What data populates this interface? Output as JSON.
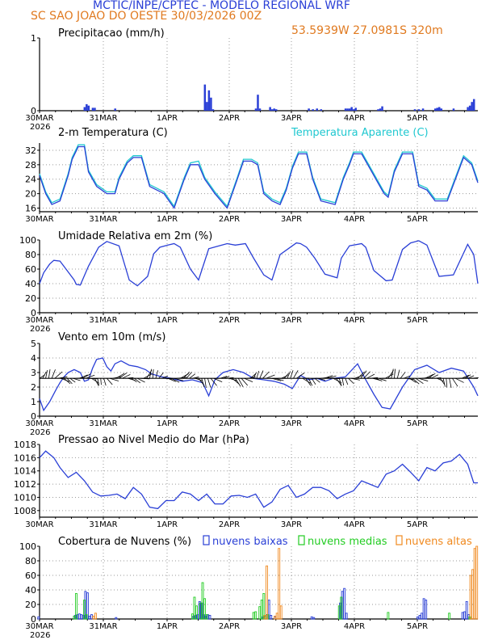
{
  "header": {
    "line1": "MCTIC/INPE/CPTEC - MODELO REGIONAL WRF",
    "line2": "SC SAO JOAO DO OESTE   30/03/2026 00Z",
    "coords": "53.5939W 27.0981S 320m"
  },
  "colors": {
    "blue": "#2a3fd6",
    "cyan": "#20c8d0",
    "orange": "#f08a20",
    "green": "#22cc22",
    "title_orange": "#e07a20",
    "grid": "#9a9a9a"
  },
  "chart_data": [
    {
      "type": "bar",
      "title": "Precipitacao (mm/h)",
      "ylim": [
        0,
        1
      ],
      "yticks": [
        "0",
        "1"
      ],
      "xticks": [
        "30MAR",
        "31MAR",
        "1APR",
        "2APR",
        "3APR",
        "4APR",
        "5APR"
      ],
      "year": "2026",
      "x": [
        22,
        23,
        24,
        26,
        27,
        37,
        81,
        82,
        83,
        84,
        85,
        106,
        107,
        108,
        113,
        114,
        115,
        116,
        132,
        134,
        136,
        138,
        150,
        151,
        152,
        153,
        154,
        155,
        166,
        167,
        168,
        184,
        186,
        188,
        194,
        195,
        196,
        197,
        203,
        210,
        211,
        212,
        213
      ],
      "values": [
        0.05,
        0.09,
        0.07,
        0.04,
        0.04,
        0.03,
        0.36,
        0.12,
        0.28,
        0.18,
        0.02,
        0.03,
        0.22,
        0.03,
        0.05,
        0.02,
        0.03,
        0.02,
        0.03,
        0.02,
        0.03,
        0.02,
        0.03,
        0.03,
        0.03,
        0.05,
        0.02,
        0.04,
        0.02,
        0.03,
        0.06,
        0.02,
        0.02,
        0.03,
        0.03,
        0.04,
        0.05,
        0.03,
        0.03,
        0.05,
        0.07,
        0.12,
        0.16
      ]
    },
    {
      "type": "line",
      "title": "2-m Temperatura (C)",
      "legend": "Temperatura Aparente (C)",
      "ylim": [
        15,
        34
      ],
      "yticks": [
        "16",
        "20",
        "24",
        "28",
        "32"
      ],
      "xticks": [
        "30MAR",
        "31MAR",
        "1APR",
        "2APR",
        "3APR",
        "4APR",
        "5APR"
      ],
      "year": "2026",
      "series": [
        {
          "name": "Temperatura 2m",
          "color": "#2a3fd6",
          "x": [
            0,
            3,
            6,
            10,
            14,
            16,
            19,
            20,
            22,
            24,
            28,
            33,
            37,
            39,
            43,
            46,
            50,
            54,
            61,
            66,
            71,
            74,
            78,
            81,
            86,
            92,
            97,
            100,
            104,
            107,
            110,
            114,
            118,
            121,
            124,
            127,
            131,
            134,
            138,
            145,
            149,
            152,
            154,
            158,
            163,
            166,
            169,
            171,
            174,
            178,
            183,
            186,
            190,
            194,
            200,
            206,
            208,
            212,
            215
          ],
          "values": [
            25,
            20,
            17,
            18,
            25,
            29.5,
            33,
            33,
            33,
            26,
            22,
            20,
            20,
            24,
            28.5,
            30,
            30,
            22,
            20,
            16,
            24,
            28,
            28,
            24,
            20,
            16,
            24,
            29,
            29,
            28,
            20,
            18,
            17,
            21,
            27,
            31,
            31,
            24,
            18,
            17,
            24,
            28,
            31,
            31,
            26,
            23,
            20,
            19,
            26,
            31,
            31,
            22,
            21,
            18,
            18,
            27,
            30,
            28,
            23
          ]
        },
        {
          "name": "Temperatura Aparente",
          "color": "#20c8d0",
          "x": [
            0,
            3,
            6,
            10,
            14,
            16,
            19,
            20,
            22,
            24,
            28,
            33,
            37,
            39,
            43,
            46,
            50,
            54,
            61,
            66,
            71,
            74,
            78,
            81,
            86,
            92,
            97,
            100,
            104,
            107,
            110,
            114,
            118,
            121,
            124,
            127,
            131,
            134,
            138,
            145,
            149,
            152,
            154,
            158,
            163,
            166,
            169,
            171,
            174,
            178,
            183,
            186,
            190,
            194,
            200,
            206,
            208,
            212,
            215
          ],
          "values": [
            25.5,
            20.5,
            17.5,
            18.5,
            25.5,
            30,
            33.5,
            33.5,
            33.5,
            26.5,
            22.5,
            20.5,
            20.5,
            24.5,
            29,
            30.5,
            30.5,
            22.5,
            20.5,
            16.5,
            24.5,
            28.5,
            29,
            24.5,
            20.5,
            16.5,
            24.5,
            29.5,
            29.5,
            28.5,
            20.5,
            18.5,
            17.5,
            21.5,
            27.5,
            31.5,
            31.5,
            24.5,
            18.5,
            17.5,
            24.5,
            28.5,
            31.5,
            31.5,
            26.5,
            23.5,
            20.5,
            19.5,
            26.5,
            31.5,
            31.5,
            22.5,
            21.5,
            18.5,
            18.5,
            27.5,
            30.5,
            28.5,
            23.5
          ]
        }
      ]
    },
    {
      "type": "line",
      "title": "Umidade Relativa em 2m (%)",
      "ylim": [
        0,
        100
      ],
      "yticks": [
        "0",
        "20",
        "40",
        "60",
        "80",
        "100"
      ],
      "xticks": [
        "30MAR",
        "31MAR",
        "1APR",
        "2APR",
        "3APR",
        "4APR",
        "5APR"
      ],
      "year": "2026",
      "series": [
        {
          "name": "Umidade",
          "color": "#2a3fd6",
          "x": [
            0,
            2,
            5,
            7,
            10,
            13,
            17,
            18,
            20,
            24,
            29,
            33,
            39,
            44,
            48,
            53,
            56,
            59,
            63,
            66,
            69,
            74,
            78,
            83,
            88,
            92,
            96,
            101,
            105,
            110,
            114,
            118,
            122,
            126,
            128,
            131,
            135,
            140,
            146,
            148,
            152,
            158,
            160,
            164,
            170,
            173,
            178,
            182,
            186,
            190,
            196,
            203,
            210,
            213,
            215
          ],
          "values": [
            40,
            55,
            67,
            72,
            71,
            60,
            45,
            39,
            38,
            64,
            90,
            98,
            92,
            45,
            37,
            50,
            81,
            90,
            93,
            95,
            90,
            60,
            45,
            88,
            92,
            95,
            93,
            95,
            75,
            52,
            45,
            80,
            88,
            96,
            95,
            90,
            75,
            53,
            48,
            75,
            92,
            95,
            90,
            58,
            44,
            45,
            87,
            96,
            99,
            93,
            50,
            52,
            94,
            80,
            40
          ]
        }
      ]
    },
    {
      "type": "line",
      "title": "Vento em 10m (m/s)",
      "ylim": [
        0,
        5
      ],
      "yticks": [
        "0",
        "1",
        "2",
        "3",
        "4",
        "5"
      ],
      "xticks": [
        "30MAR",
        "31MAR",
        "1APR",
        "2APR",
        "3APR",
        "4APR",
        "5APR"
      ],
      "year": "2026",
      "series": [
        {
          "name": "Velocidade",
          "color": "#2a3fd6",
          "x": [
            0,
            2,
            5,
            8,
            10,
            12,
            14,
            17,
            20,
            22,
            24,
            26,
            28,
            31,
            33,
            35,
            37,
            40,
            44,
            48,
            52,
            55,
            60,
            65,
            70,
            75,
            80,
            83,
            86,
            90,
            95,
            100,
            105,
            110,
            115,
            120,
            124,
            128,
            132,
            136,
            140,
            144,
            150,
            156,
            160,
            164,
            168,
            172,
            178,
            184,
            190,
            196,
            202,
            208,
            213,
            215
          ],
          "values": [
            1.2,
            0.4,
            1.0,
            1.8,
            2.3,
            2.7,
            3.0,
            3.2,
            3.0,
            2.4,
            2.5,
            3.3,
            3.9,
            4.0,
            3.4,
            3.1,
            3.6,
            3.8,
            3.5,
            3.4,
            3.2,
            2.9,
            2.7,
            2.6,
            2.4,
            2.5,
            2.3,
            1.4,
            2.5,
            3.0,
            3.2,
            3.0,
            2.6,
            2.5,
            2.4,
            2.2,
            1.9,
            2.8,
            2.5,
            2.6,
            2.4,
            2.6,
            2.7,
            3.6,
            2.5,
            1.5,
            0.6,
            0.5,
            2.0,
            3.2,
            3.5,
            3.0,
            3.3,
            3.1,
            2.0,
            1.4
          ]
        }
      ]
    },
    {
      "type": "line",
      "title": "Pressao ao Nivel Medio do Mar (hPa)",
      "ylim": [
        1007,
        1018
      ],
      "yticks": [
        "1008",
        "1010",
        "1012",
        "1014",
        "1016",
        "1018"
      ],
      "xticks": [
        "30MAR",
        "31MAR",
        "1APR",
        "2APR",
        "3APR",
        "4APR",
        "5APR"
      ],
      "year": "2026",
      "series": [
        {
          "name": "Pressao",
          "color": "#2a3fd6",
          "x": [
            0,
            3,
            7,
            10,
            14,
            18,
            22,
            26,
            30,
            34,
            38,
            42,
            46,
            50,
            54,
            58,
            62,
            66,
            70,
            74,
            78,
            82,
            86,
            90,
            94,
            98,
            102,
            106,
            110,
            114,
            118,
            122,
            126,
            130,
            134,
            138,
            142,
            146,
            150,
            154,
            158,
            162,
            166,
            170,
            174,
            178,
            182,
            186,
            190,
            194,
            198,
            202,
            206,
            210,
            213,
            215
          ],
          "values": [
            1016.0,
            1017.0,
            1016.0,
            1014.5,
            1013.0,
            1013.8,
            1012.5,
            1010.8,
            1010.2,
            1010.3,
            1010.5,
            1009.8,
            1011.5,
            1010.5,
            1008.5,
            1008.3,
            1009.5,
            1009.5,
            1010.8,
            1010.5,
            1009.5,
            1010.5,
            1009.0,
            1009.0,
            1010.2,
            1010.3,
            1010.0,
            1010.5,
            1008.5,
            1009.3,
            1011.2,
            1011.8,
            1010.0,
            1010.5,
            1011.5,
            1011.5,
            1011.0,
            1009.8,
            1010.5,
            1011.0,
            1012.5,
            1012.0,
            1011.5,
            1013.5,
            1014.0,
            1015.0,
            1013.8,
            1012.5,
            1014.5,
            1014.0,
            1015.2,
            1015.5,
            1016.5,
            1015.0,
            1012.2,
            1012.2
          ]
        }
      ]
    },
    {
      "type": "bar",
      "title": "Cobertura de Nuvens (%)",
      "ylim": [
        0,
        100
      ],
      "yticks": [
        "0",
        "20",
        "40",
        "60",
        "80",
        "100"
      ],
      "xticks": [
        "30MAR",
        "31MAR",
        "1APR",
        "2APR",
        "3APR",
        "4APR",
        "5APR"
      ],
      "year": "2026",
      "series": [
        {
          "name": "nuvens baixas",
          "color": "#2a3fd6",
          "x": [
            0,
            18,
            19,
            20,
            21,
            22,
            23,
            24,
            25,
            26,
            38,
            76,
            77,
            78,
            79,
            80,
            81,
            82,
            83,
            84,
            110,
            111,
            112,
            113,
            114,
            116,
            134,
            135,
            148,
            149,
            150,
            151,
            186,
            187,
            188,
            189,
            190,
            208,
            209,
            210,
            211
          ],
          "values": [
            3,
            5,
            6,
            7,
            6,
            5,
            38,
            36,
            4,
            6,
            2,
            4,
            5,
            6,
            24,
            22,
            6,
            4,
            6,
            5,
            3,
            4,
            6,
            26,
            5,
            3,
            3,
            2,
            22,
            38,
            42,
            8,
            3,
            5,
            8,
            28,
            26,
            9,
            10,
            24,
            6
          ]
        },
        {
          "name": "nuvens medias",
          "color": "#22cc22",
          "x": [
            17,
            18,
            22,
            23,
            75,
            76,
            77,
            79,
            80,
            81,
            82,
            105,
            106,
            108,
            109,
            110,
            112,
            147,
            148,
            171,
            201,
            211
          ],
          "values": [
            4,
            35,
            26,
            6,
            7,
            30,
            18,
            22,
            50,
            28,
            6,
            9,
            10,
            17,
            26,
            35,
            6,
            18,
            30,
            9,
            8,
            3
          ]
        },
        {
          "name": "nuvens altas",
          "color": "#f08a20",
          "x": [
            26,
            27,
            110,
            111,
            115,
            116,
            117,
            118,
            211,
            212,
            213,
            214
          ],
          "values": [
            4,
            8,
            5,
            73,
            4,
            8,
            97,
            18,
            60,
            68,
            97,
            100
          ]
        }
      ]
    }
  ],
  "legends": {
    "cloud_low": "nuvens baixas",
    "cloud_mid": "nuvens medias",
    "cloud_high": "nuvens altas"
  }
}
